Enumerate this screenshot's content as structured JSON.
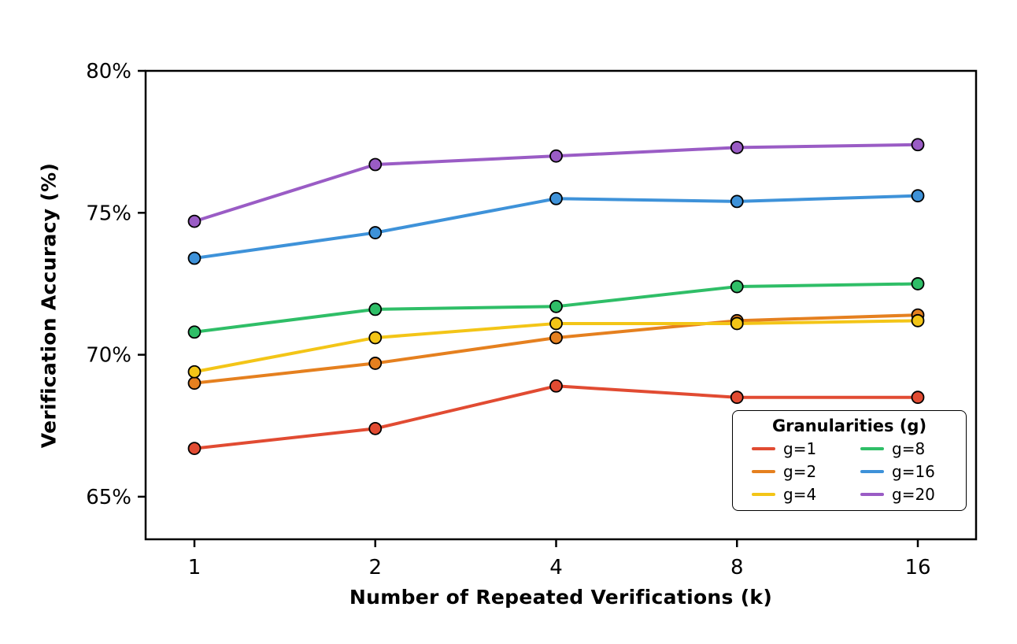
{
  "chart_data": {
    "type": "line",
    "x": [
      1,
      2,
      4,
      8,
      16
    ],
    "xlabel": "Number of Repeated Verifications (k)",
    "ylabel": "Verification Accuracy (%)",
    "ylim": [
      63.5,
      80
    ],
    "yticks": [
      65,
      70,
      75,
      80
    ],
    "ytick_labels": [
      "65%",
      "70%",
      "75%",
      "80%"
    ],
    "grid": false,
    "legend_title": "Granularities (g)",
    "legend_position": "lower right",
    "series": [
      {
        "name": "g=1",
        "color": "#e14b32",
        "values": [
          66.7,
          67.4,
          68.9,
          68.5,
          68.5
        ]
      },
      {
        "name": "g=2",
        "color": "#e5801f",
        "values": [
          69.0,
          69.7,
          70.6,
          71.2,
          71.4
        ]
      },
      {
        "name": "g=4",
        "color": "#f3c517",
        "values": [
          69.4,
          70.6,
          71.1,
          71.1,
          71.2
        ]
      },
      {
        "name": "g=8",
        "color": "#2fbe67",
        "values": [
          70.8,
          71.6,
          71.7,
          72.4,
          72.5
        ]
      },
      {
        "name": "g=16",
        "color": "#3e92d9",
        "values": [
          73.4,
          74.3,
          75.5,
          75.4,
          75.6
        ]
      },
      {
        "name": "g=20",
        "color": "#9a5cc5",
        "values": [
          74.7,
          76.7,
          77.0,
          77.3,
          77.4
        ]
      }
    ]
  }
}
